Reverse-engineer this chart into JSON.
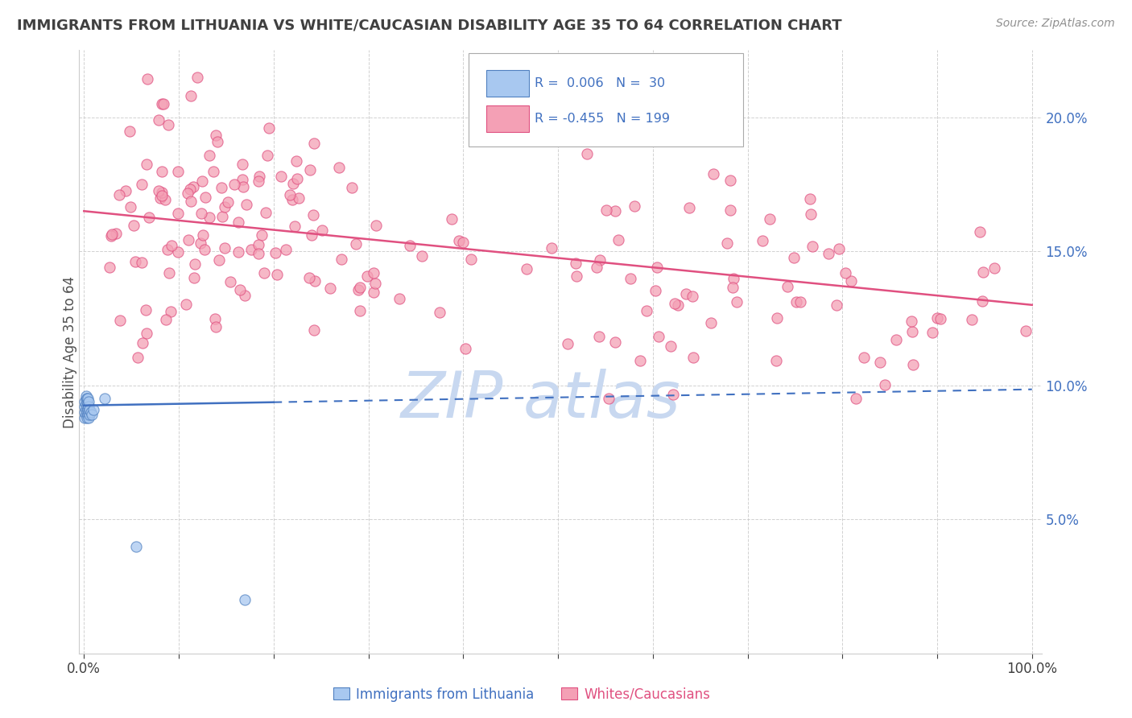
{
  "title": "IMMIGRANTS FROM LITHUANIA VS WHITE/CAUCASIAN DISABILITY AGE 35 TO 64 CORRELATION CHART",
  "source": "Source: ZipAtlas.com",
  "ylabel": "Disability Age 35 to 64",
  "watermark": "ZIP atlas",
  "blue_color": "#A8C8F0",
  "blue_edge_color": "#5080C0",
  "pink_color": "#F4A0B5",
  "pink_edge_color": "#E05080",
  "blue_line_color": "#4070C0",
  "pink_line_color": "#E05080",
  "ytick_color": "#4070C0",
  "title_color": "#404040",
  "source_color": "#909090",
  "watermark_color": "#C8D8F0",
  "grid_color": "#cccccc",
  "background_color": "#ffffff",
  "legend_edge_color": "#aaaaaa",
  "blue_label_r": "R=  0.006",
  "blue_label_n": "N=  30",
  "pink_label_r": "R= -0.455",
  "pink_label_n": "N= 199",
  "bottom_label_blue": "Immigrants from Lithuania",
  "bottom_label_pink": "Whites/Caucasians",
  "blue_x": [
    0.001,
    0.001,
    0.001,
    0.001,
    0.002,
    0.002,
    0.002,
    0.002,
    0.002,
    0.003,
    0.003,
    0.003,
    0.003,
    0.003,
    0.004,
    0.004,
    0.004,
    0.004,
    0.005,
    0.005,
    0.005,
    0.005,
    0.006,
    0.006,
    0.007,
    0.008,
    0.01,
    0.022,
    0.055,
    0.17
  ],
  "blue_y": [
    0.088,
    0.09,
    0.092,
    0.094,
    0.089,
    0.091,
    0.093,
    0.095,
    0.096,
    0.088,
    0.09,
    0.092,
    0.094,
    0.095,
    0.089,
    0.091,
    0.093,
    0.095,
    0.088,
    0.09,
    0.092,
    0.094,
    0.089,
    0.091,
    0.09,
    0.089,
    0.091,
    0.095,
    0.04,
    0.02
  ],
  "blue_line_x0": 0.0,
  "blue_line_x1": 1.0,
  "blue_line_y0": 0.0925,
  "blue_line_y1": 0.0985,
  "pink_line_x0": 0.0,
  "pink_line_x1": 1.0,
  "pink_line_y0": 0.165,
  "pink_line_y1": 0.13,
  "xlim": [
    0.0,
    1.0
  ],
  "ylim": [
    0.0,
    0.225
  ],
  "yticks": [
    0.05,
    0.1,
    0.15,
    0.2
  ],
  "xtick_show": [
    0.0,
    1.0
  ]
}
